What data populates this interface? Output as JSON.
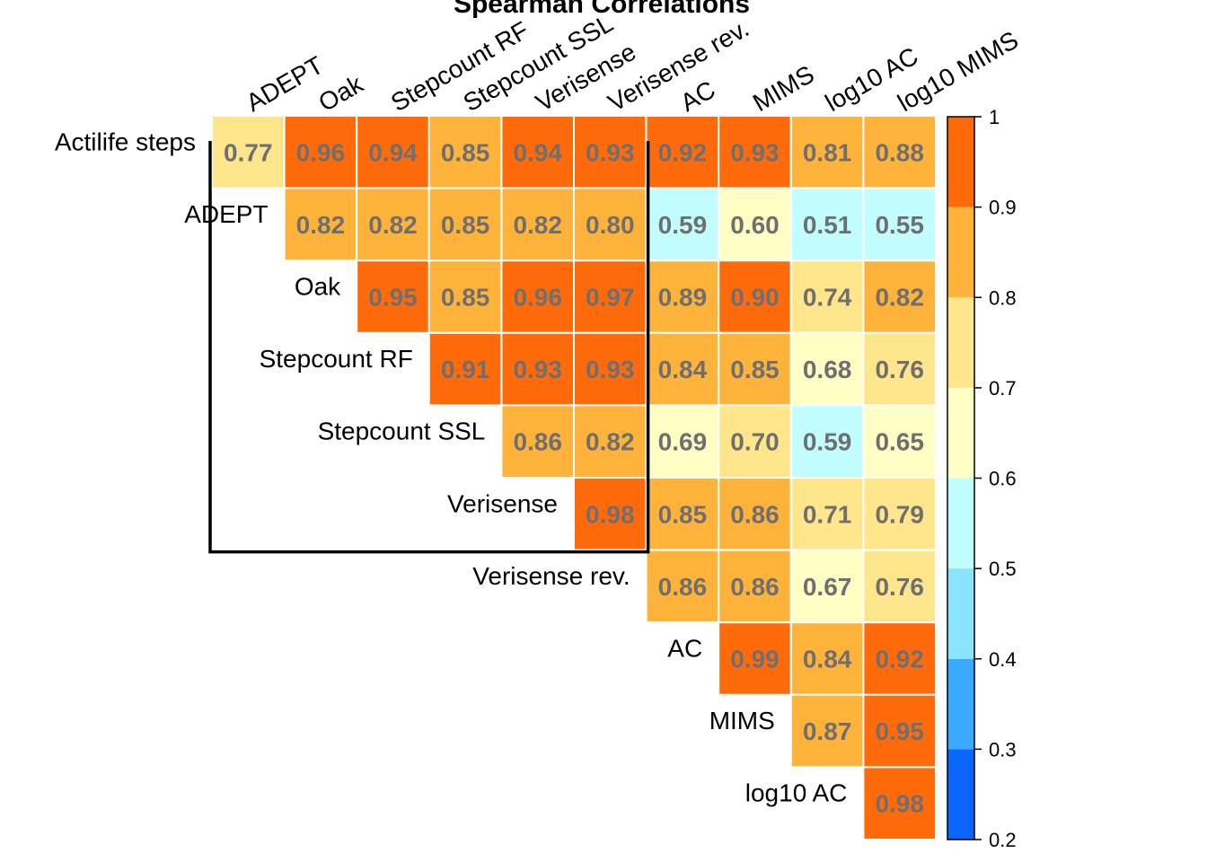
{
  "chart_data": {
    "type": "heatmap",
    "title": "Spearman Correlations",
    "row_labels": [
      "Actilife steps",
      "ADEPT",
      "Oak",
      "Stepcount RF",
      "Stepcount SSL",
      "Verisense",
      "Verisense rev.",
      "AC",
      "MIMS",
      "log10 AC"
    ],
    "column_labels": [
      "ADEPT",
      "Oak",
      "Stepcount RF",
      "Stepcount SSL",
      "Verisense",
      "Verisense rev.",
      "AC",
      "MIMS",
      "log10 AC",
      "log10 MIMS"
    ],
    "values": [
      [
        0.77,
        0.96,
        0.94,
        0.85,
        0.94,
        0.93,
        0.92,
        0.93,
        0.81,
        0.88
      ],
      [
        null,
        0.82,
        0.82,
        0.85,
        0.82,
        0.8,
        0.59,
        0.6,
        0.51,
        0.55
      ],
      [
        null,
        null,
        0.95,
        0.85,
        0.96,
        0.97,
        0.89,
        0.9,
        0.74,
        0.82
      ],
      [
        null,
        null,
        null,
        0.91,
        0.93,
        0.93,
        0.84,
        0.85,
        0.68,
        0.76
      ],
      [
        null,
        null,
        null,
        null,
        0.86,
        0.82,
        0.69,
        0.7,
        0.59,
        0.65
      ],
      [
        null,
        null,
        null,
        null,
        null,
        0.98,
        0.85,
        0.86,
        0.71,
        0.79
      ],
      [
        null,
        null,
        null,
        null,
        null,
        null,
        0.86,
        0.86,
        0.67,
        0.76
      ],
      [
        null,
        null,
        null,
        null,
        null,
        null,
        null,
        0.99,
        0.84,
        0.92
      ],
      [
        null,
        null,
        null,
        null,
        null,
        null,
        null,
        null,
        0.87,
        0.95
      ],
      [
        null,
        null,
        null,
        null,
        null,
        null,
        null,
        null,
        null,
        0.98
      ]
    ],
    "highlight_block": {
      "rows": [
        "Actilife steps",
        "Verisense"
      ],
      "columns": [
        "ADEPT",
        "Verisense rev."
      ]
    },
    "colorbar": {
      "min": 0.2,
      "max": 1.0,
      "ticks": [
        "0.2",
        "0.3",
        "0.4",
        "0.5",
        "0.6",
        "0.7",
        "0.8",
        "0.9",
        "1"
      ],
      "bins": [
        {
          "from": 0.2,
          "to": 0.3,
          "color": "#0a66ff"
        },
        {
          "from": 0.3,
          "to": 0.4,
          "color": "#3aaaff"
        },
        {
          "from": 0.4,
          "to": 0.5,
          "color": "#8ae4ff"
        },
        {
          "from": 0.5,
          "to": 0.6,
          "color": "#c2feff"
        },
        {
          "from": 0.6,
          "to": 0.7,
          "color": "#fffec4"
        },
        {
          "from": 0.7,
          "to": 0.8,
          "color": "#ffe68c"
        },
        {
          "from": 0.8,
          "to": 0.9,
          "color": "#ffb33a"
        },
        {
          "from": 0.9,
          "to": 1.0,
          "color": "#ff6a0a"
        }
      ]
    }
  }
}
